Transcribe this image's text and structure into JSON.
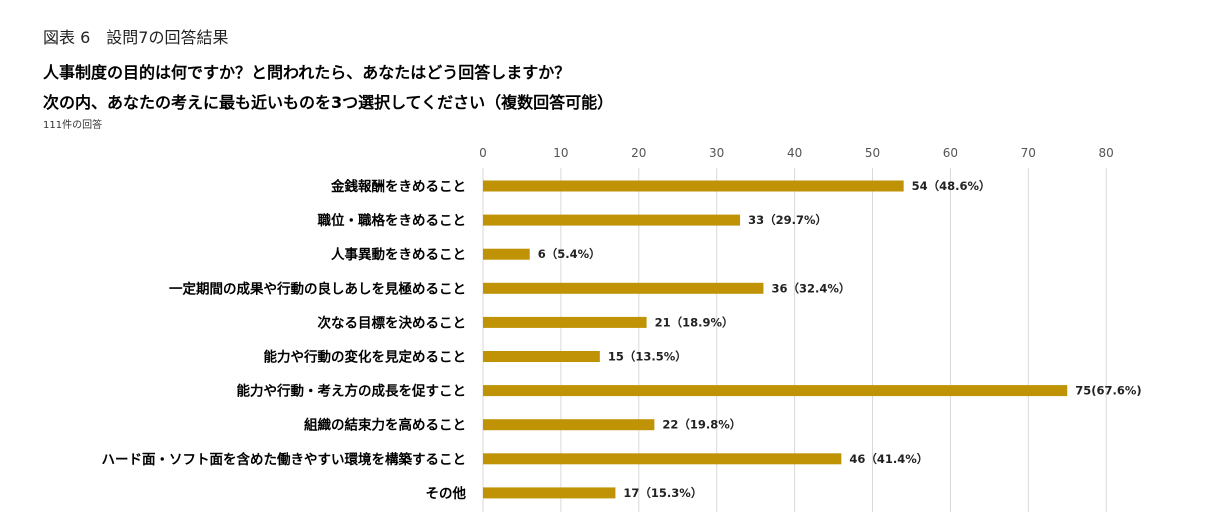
{
  "header": {
    "figure_label": "図表 6　設問7の回答結果",
    "question_line_1": "人事制度の目的は何ですか？と問われたら、あなたはどう回答しますか？",
    "question_line_2": "次の内、あなたの考えに最も近いものを3つ選択してください（複数回答可能）",
    "response_count": "111件の回答"
  },
  "chart_data": {
    "type": "bar",
    "orientation": "horizontal",
    "categories": [
      "金銭報酬をきめること",
      "職位・職格をきめること",
      "人事異動をきめること",
      "一定期間の成果や行動の良しあしを見極めること",
      "次なる目標を決めること",
      "能力や行動の変化を見定めること",
      "能力や行動・考え方の成長を促すこと",
      "組織の結束力を高めること",
      "ハード面・ソフト面を含めた働きやすい環境を構築すること",
      "その他"
    ],
    "values": [
      54,
      33,
      6,
      36,
      21,
      15,
      75,
      22,
      46,
      17
    ],
    "data_labels": [
      "54（48.6%）",
      "33（29.7%）",
      "6（5.4%）",
      "36（32.4%）",
      "21（18.9%）",
      "15（13.5%）",
      "75(67.6%)",
      "22（19.8%）",
      "46（41.4%）",
      "17（15.3%）"
    ],
    "xlim": [
      0,
      80
    ],
    "ticks": [
      0,
      10,
      20,
      30,
      40,
      50,
      60,
      70,
      80
    ],
    "tick_position": "top",
    "grid": true,
    "bar_color": "#C09306",
    "grid_color": "#d9d9d9"
  }
}
